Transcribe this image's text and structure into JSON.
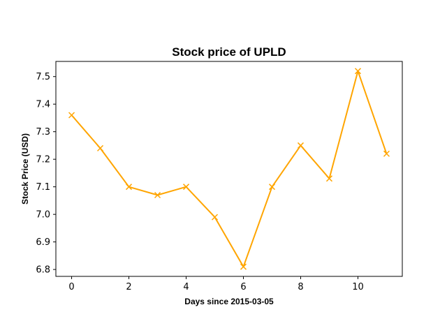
{
  "chart_data": {
    "type": "line",
    "title": "Stock price of UPLD",
    "xlabel": "Days since 2015-03-05",
    "ylabel": "Stock Price (USD)",
    "x": [
      0,
      1,
      2,
      3,
      4,
      5,
      6,
      7,
      8,
      9,
      10,
      11
    ],
    "series": [
      {
        "values": [
          7.36,
          7.24,
          7.1,
          7.07,
          7.1,
          6.99,
          6.81,
          7.1,
          7.25,
          7.13,
          7.52,
          7.22
        ],
        "color": "#FFA500",
        "marker": "x"
      }
    ],
    "xlim": [
      -0.55,
      11.55
    ],
    "ylim": [
      6.775,
      7.555
    ],
    "xticks": [
      0,
      2,
      4,
      6,
      8,
      10
    ],
    "xtick_labels": [
      "0",
      "2",
      "4",
      "6",
      "8",
      "10"
    ],
    "yticks": [
      6.8,
      6.9,
      7.0,
      7.1,
      7.2,
      7.3,
      7.4,
      7.5
    ],
    "ytick_labels": [
      "6.8",
      "6.9",
      "7.0",
      "7.1",
      "7.2",
      "7.3",
      "7.4",
      "7.5"
    ],
    "grid": false,
    "legend": "none"
  }
}
